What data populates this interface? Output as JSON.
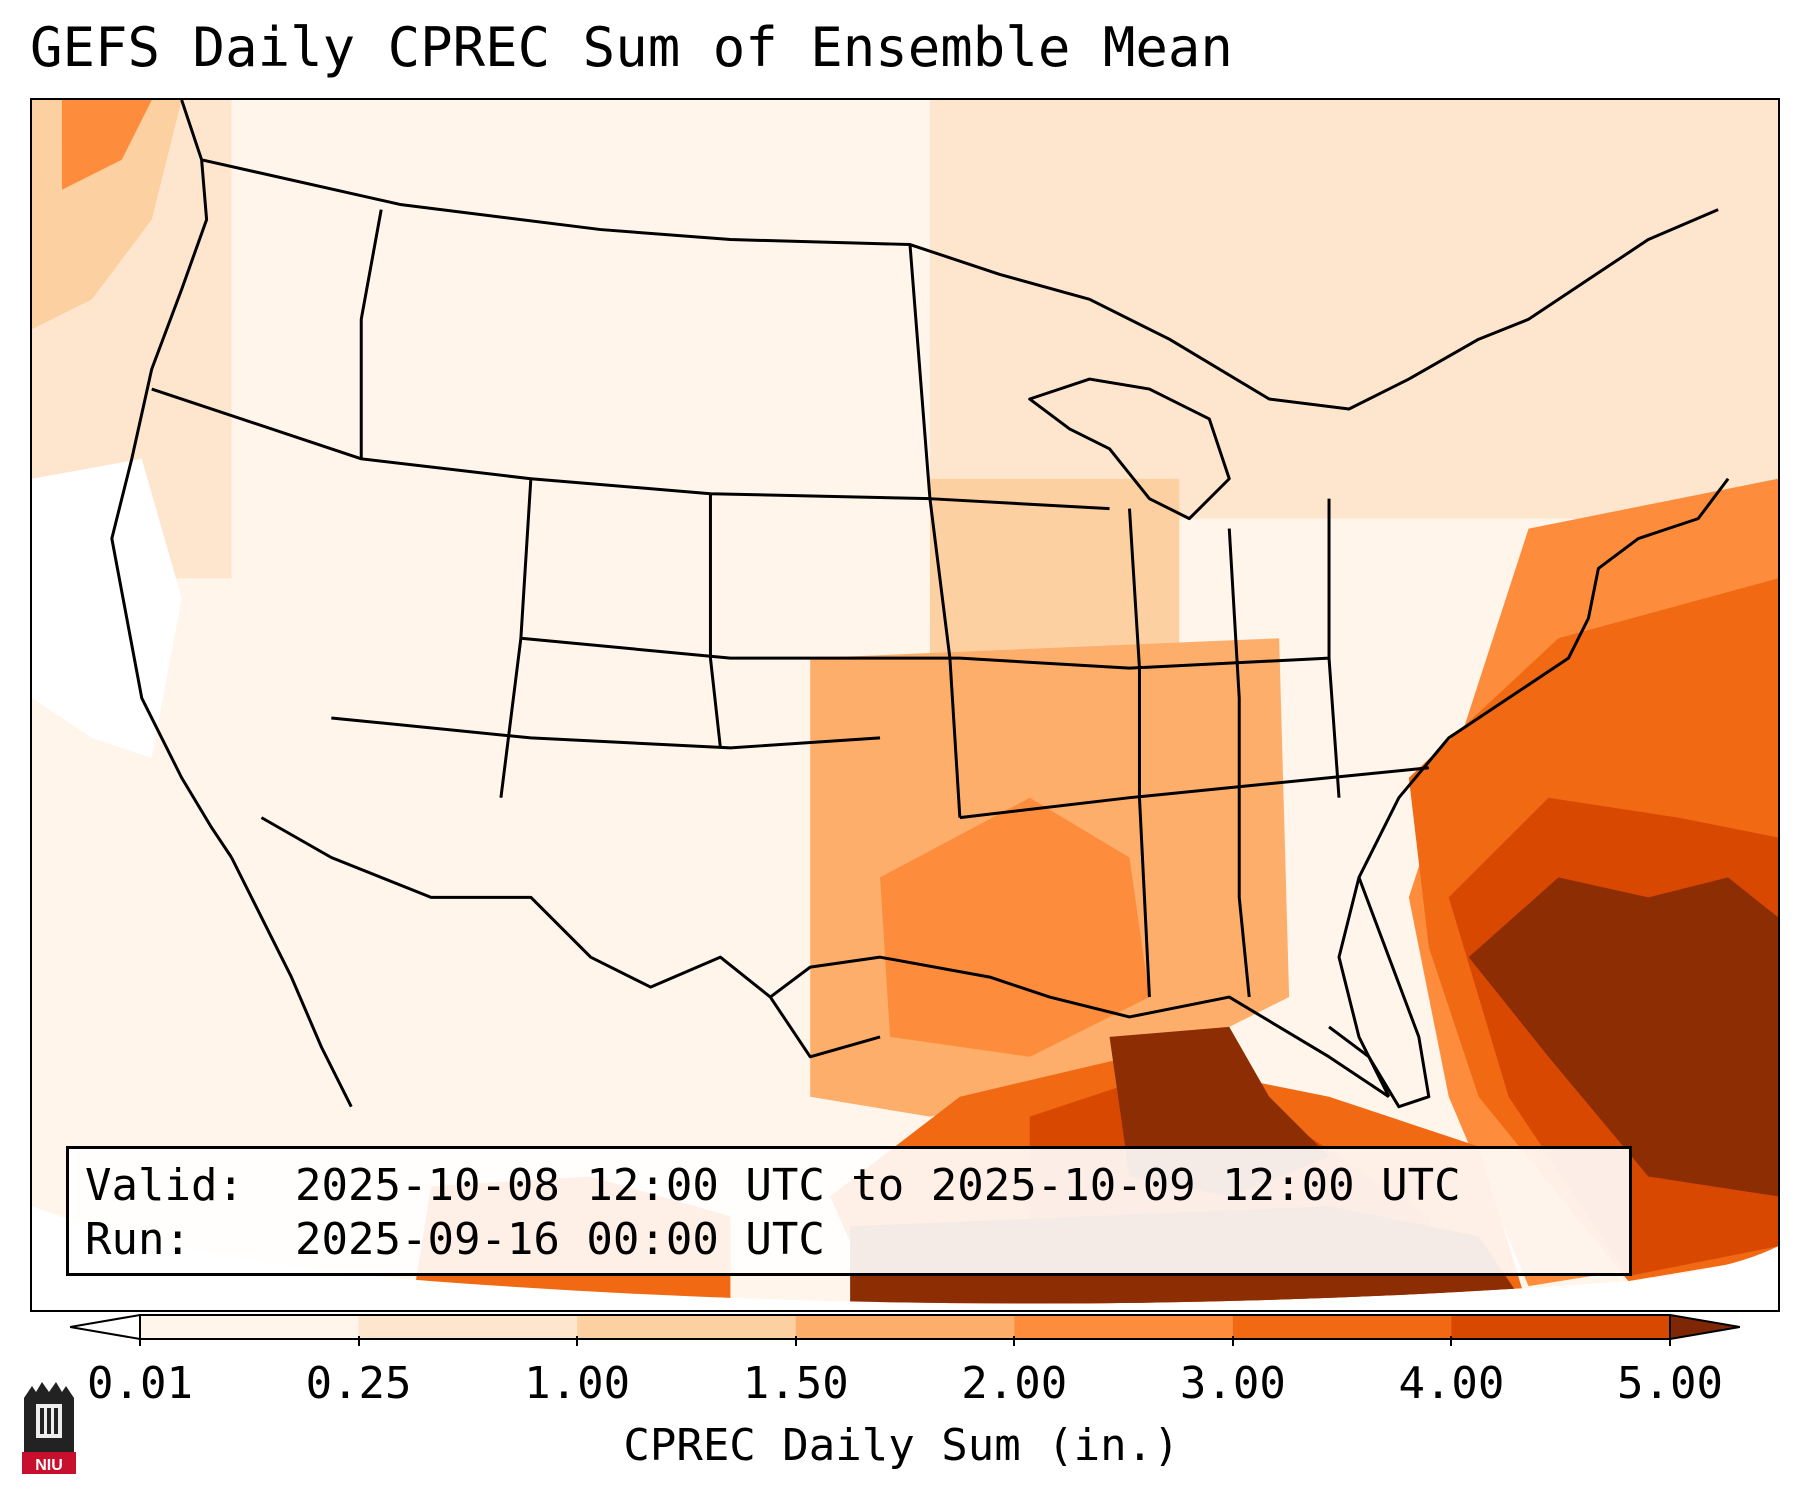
{
  "title": "GEFS Daily CPREC Sum of Ensemble Mean",
  "info": {
    "valid_label": "Valid:",
    "valid_value": "2025-10-08 12:00 UTC to 2025-10-09 12:00 UTC",
    "run_label": "Run:",
    "run_value": "2025-09-16 00:00 UTC"
  },
  "colorbar": {
    "label": "CPREC Daily Sum (in.)",
    "ticks": [
      "0.01",
      "0.25",
      "1.00",
      "1.50",
      "2.00",
      "3.00",
      "4.00",
      "5.00"
    ],
    "colors": [
      "#fff5eb",
      "#fee6ce",
      "#fdd0a2",
      "#fdae6b",
      "#fd8d3c",
      "#f16913",
      "#d94801",
      "#8c2d04"
    ],
    "under_color": "#ffffff",
    "over_color": "#7f2704"
  },
  "logo": {
    "text": "NIU",
    "icon": "university-tower-icon",
    "color": "#c8102e"
  }
}
